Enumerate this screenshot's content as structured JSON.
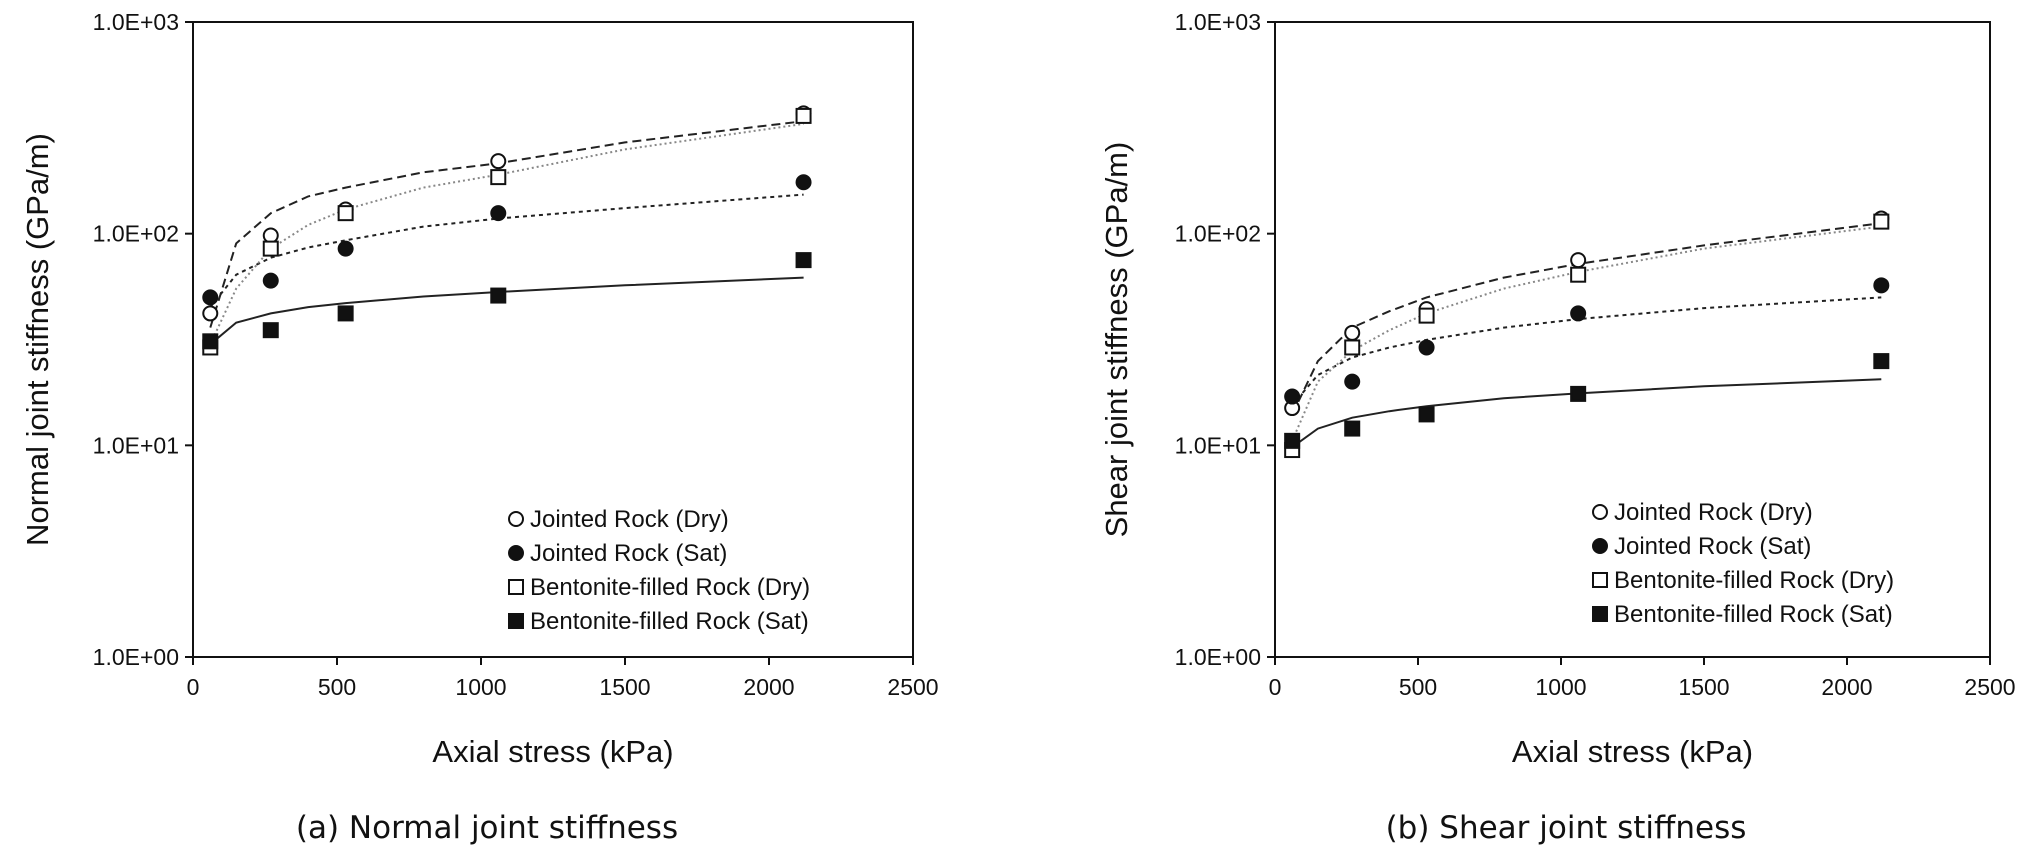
{
  "chart_data": [
    {
      "type": "scatter",
      "caption": "(a) Normal joint stiffness",
      "xlabel": "Axial stress (kPa)",
      "ylabel": "Normal joint stiffness (GPa/m)",
      "yscale": "log",
      "xlim": [
        0,
        2500
      ],
      "ylim": [
        1,
        1000
      ],
      "xticks": [
        "0",
        "500",
        "1000",
        "1500",
        "2000",
        "2500"
      ],
      "yticks": [
        "1.0E+00",
        "1.0E+01",
        "1.0E+02",
        "1.0E+03"
      ],
      "legend_position": "bottom-right",
      "series": [
        {
          "name": "Jointed Rock (Dry)",
          "marker": "open-circle",
          "line": "dense-dash",
          "x": [
            60,
            270,
            530,
            1060,
            2120
          ],
          "y": [
            42,
            98,
            130,
            220,
            370
          ]
        },
        {
          "name": "Jointed Rock (Sat)",
          "marker": "filled-circle",
          "line": "short-dash",
          "x": [
            60,
            270,
            530,
            1060,
            2120
          ],
          "y": [
            50,
            60,
            85,
            125,
            175
          ]
        },
        {
          "name": "Bentonite-filled Rock (Dry)",
          "marker": "open-square",
          "line": "dotted-gray",
          "x": [
            60,
            270,
            530,
            1060,
            2120
          ],
          "y": [
            29,
            85,
            125,
            185,
            360
          ]
        },
        {
          "name": "Bentonite-filled Rock (Sat)",
          "marker": "filled-square",
          "line": "solid",
          "x": [
            60,
            270,
            530,
            1060,
            2120
          ],
          "y": [
            31,
            35,
            42,
            51,
            75
          ]
        }
      ],
      "fits": [
        {
          "series": "Jointed Rock (Dry)",
          "x": [
            60,
            150,
            270,
            400,
            530,
            800,
            1060,
            1500,
            2120
          ],
          "y": [
            36,
            90,
            125,
            150,
            165,
            195,
            215,
            270,
            340
          ]
        },
        {
          "series": "Jointed Rock (Sat)",
          "x": [
            60,
            150,
            270,
            400,
            530,
            800,
            1060,
            1500,
            2120
          ],
          "y": [
            45,
            64,
            77,
            86,
            93,
            108,
            118,
            132,
            153
          ]
        },
        {
          "series": "Bentonite-filled Rock (Dry)",
          "x": [
            60,
            150,
            270,
            400,
            530,
            800,
            1060,
            1500,
            2120
          ],
          "y": [
            30,
            55,
            85,
            110,
            130,
            165,
            190,
            250,
            330
          ]
        },
        {
          "series": "Bentonite-filled Rock (Sat)",
          "x": [
            60,
            150,
            270,
            400,
            530,
            800,
            1060,
            1500,
            2120
          ],
          "y": [
            30,
            38,
            42,
            45,
            47,
            50.5,
            53,
            57,
            62
          ]
        }
      ]
    },
    {
      "type": "scatter",
      "caption": "(b) Shear joint stiffness",
      "xlabel": "Axial stress (kPa)",
      "ylabel": "Shear joint stiffness (GPa/m)",
      "yscale": "log",
      "xlim": [
        0,
        2500
      ],
      "ylim": [
        1,
        1000
      ],
      "xticks": [
        "0",
        "500",
        "1000",
        "1500",
        "2000",
        "2500"
      ],
      "yticks": [
        "1.0E+00",
        "1.0E+01",
        "1.0E+02",
        "1.0E+03"
      ],
      "legend_position": "bottom-right",
      "series": [
        {
          "name": "Jointed Rock (Dry)",
          "marker": "open-circle",
          "line": "dense-dash",
          "x": [
            60,
            270,
            530,
            1060,
            2120
          ],
          "y": [
            15,
            34,
            44,
            75,
            118
          ]
        },
        {
          "name": "Jointed Rock (Sat)",
          "marker": "filled-circle",
          "line": "short-dash",
          "x": [
            60,
            270,
            530,
            1060,
            2120
          ],
          "y": [
            17,
            20,
            29,
            42,
            57
          ]
        },
        {
          "name": "Bentonite-filled Rock (Dry)",
          "marker": "open-square",
          "line": "dotted-gray",
          "x": [
            60,
            270,
            530,
            1060,
            2120
          ],
          "y": [
            9.5,
            29,
            41,
            64,
            114
          ]
        },
        {
          "name": "Bentonite-filled Rock (Sat)",
          "marker": "filled-square",
          "line": "solid",
          "x": [
            60,
            270,
            530,
            1060,
            2120
          ],
          "y": [
            10.5,
            12,
            14,
            17.5,
            25
          ]
        }
      ],
      "fits": [
        {
          "series": "Jointed Rock (Dry)",
          "x": [
            60,
            150,
            270,
            400,
            530,
            800,
            1060,
            1500,
            2120
          ],
          "y": [
            14,
            25,
            36,
            43,
            50,
            62,
            72,
            88,
            112
          ]
        },
        {
          "series": "Jointed Rock (Sat)",
          "x": [
            60,
            150,
            270,
            400,
            530,
            800,
            1060,
            1500,
            2120
          ],
          "y": [
            15.5,
            21.5,
            26,
            29,
            31.5,
            36,
            39.5,
            44.5,
            50
          ]
        },
        {
          "series": "Bentonite-filled Rock (Dry)",
          "x": [
            60,
            150,
            270,
            400,
            530,
            800,
            1060,
            1500,
            2120
          ],
          "y": [
            10.5,
            20,
            28,
            35,
            42,
            55,
            66,
            85,
            108
          ]
        },
        {
          "series": "Bentonite-filled Rock (Sat)",
          "x": [
            60,
            150,
            270,
            400,
            530,
            800,
            1060,
            1500,
            2120
          ],
          "y": [
            9.8,
            12,
            13.5,
            14.5,
            15.3,
            16.7,
            17.6,
            19,
            20.5
          ]
        }
      ]
    }
  ]
}
